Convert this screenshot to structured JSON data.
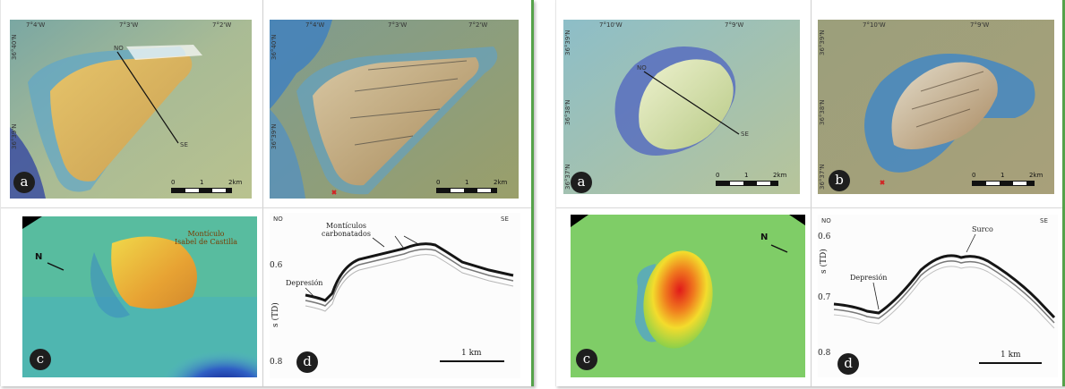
{
  "left_figure": {
    "panel_a": {
      "label": "a",
      "top_ticks": [
        "7°4'W",
        "7°3'W",
        "7°2'W"
      ],
      "side_ticks": [
        "36°40'N",
        "36°39'N"
      ],
      "profile_end_labels": [
        "NO",
        "SE"
      ],
      "scale_ticks": [
        "0",
        "1",
        "2km"
      ]
    },
    "panel_b": {
      "label": "b",
      "top_ticks": [
        "7°4'W",
        "7°3'W",
        "7°2'W"
      ],
      "side_ticks": [
        "36°40'N",
        "36°39'N"
      ],
      "scale_ticks": [
        "0",
        "1",
        "2km"
      ]
    },
    "panel_c": {
      "label": "c",
      "north": "N",
      "annotation": "Montículo\nIsabel de Castilla"
    },
    "panel_d": {
      "label": "d",
      "corner_left": "NO",
      "corner_right": "SE",
      "annotation_top": "Montículos\ncarbonatados",
      "annotation_dep": "Depresión",
      "y_ticks": [
        "0.6",
        "0.8"
      ],
      "y_axis": "s (TD)",
      "scale": "1 km"
    }
  },
  "right_figure": {
    "panel_a": {
      "label": "a",
      "top_ticks": [
        "7°10'W",
        "7°9'W"
      ],
      "side_ticks": [
        "36°39'N",
        "36°38'N",
        "36°37'N"
      ],
      "profile_end_labels": [
        "NO",
        "SE"
      ],
      "scale_ticks": [
        "0",
        "1",
        "2km"
      ]
    },
    "panel_b": {
      "label": "b",
      "top_ticks": [
        "7°10'W",
        "7°9'W"
      ],
      "side_ticks": [
        "36°39'N",
        "36°38'N",
        "36°37'N"
      ],
      "scale_ticks": [
        "0",
        "1",
        "2km"
      ]
    },
    "panel_c": {
      "label": "c",
      "north": "N"
    },
    "panel_d": {
      "label": "d",
      "corner_left": "NO",
      "corner_right": "SE",
      "annotation_top": "Surco",
      "annotation_dep": "Depresión",
      "y_ticks": [
        "0.6",
        "0.7",
        "0.8"
      ],
      "y_axis": "s (TD)",
      "scale": "1 km"
    }
  }
}
